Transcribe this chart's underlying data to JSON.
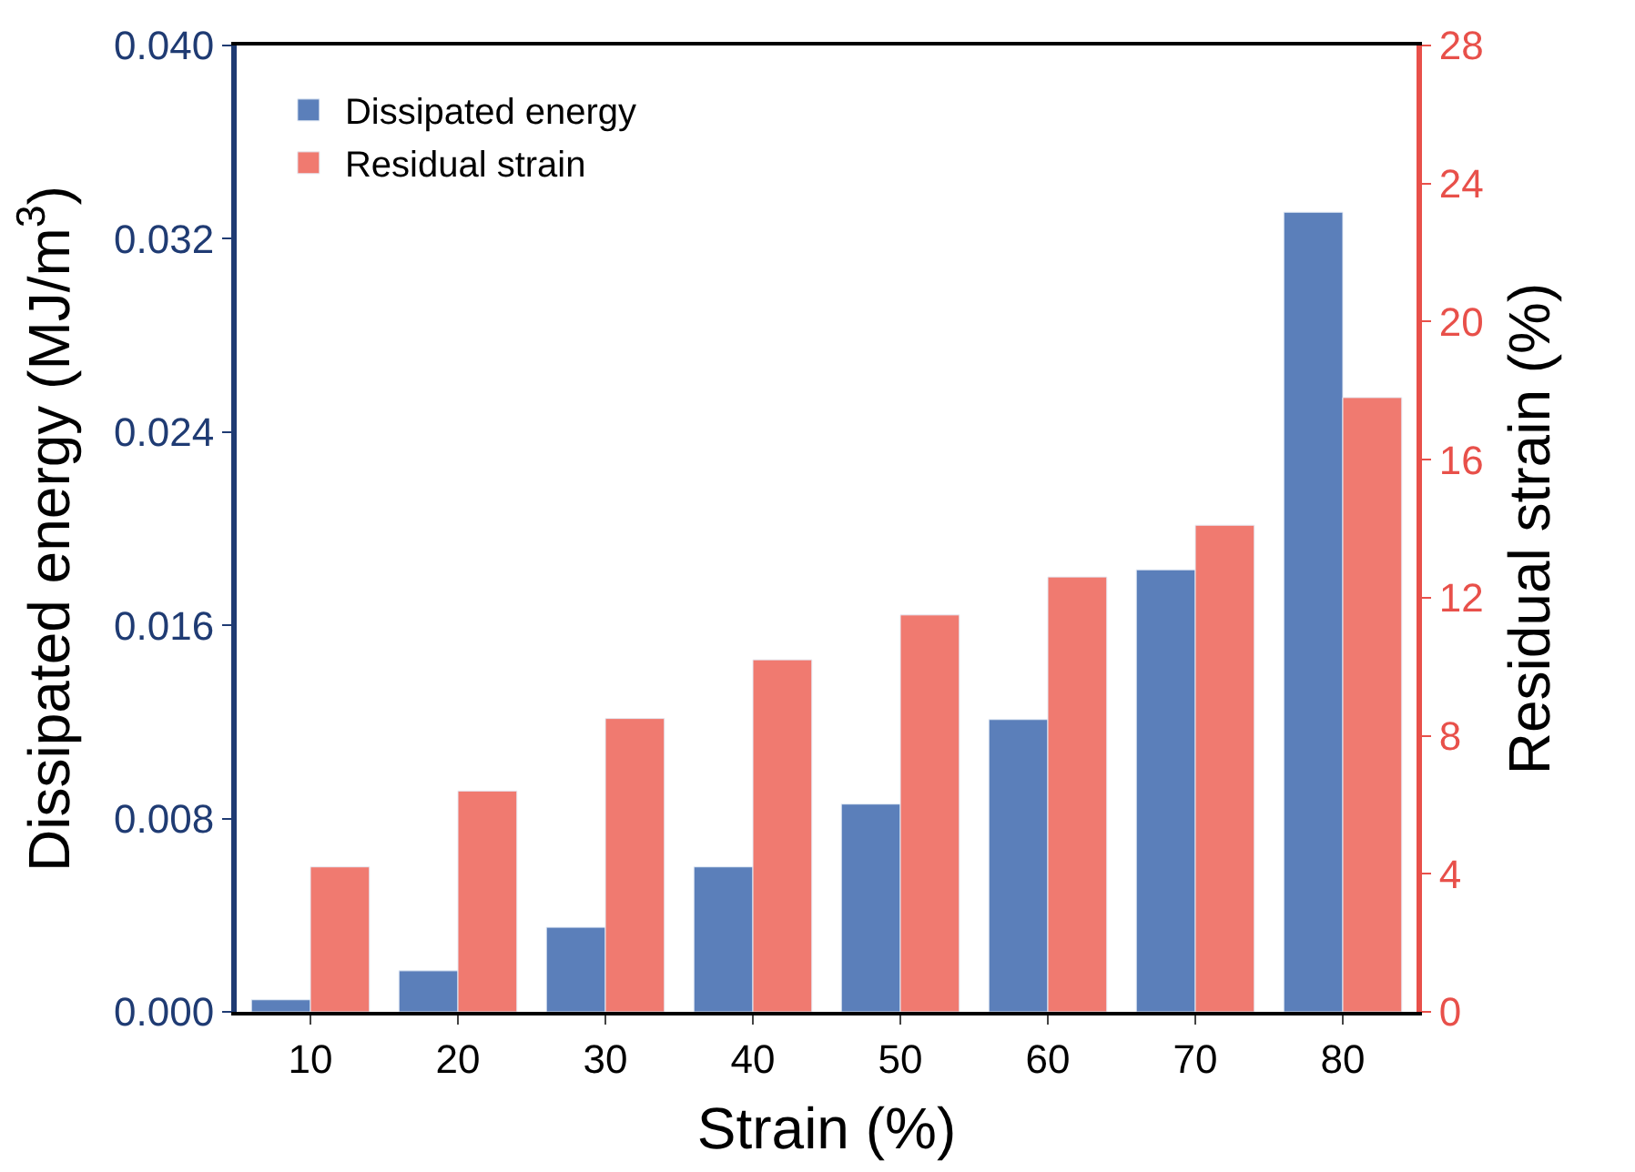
{
  "chart_data": {
    "type": "bar",
    "xlabel": "Strain (%)",
    "ylabel": "Dissipated energy (MJ/m$^{3}$)",
    "y2label": "Residual strain (%)",
    "categories": [
      "10",
      "20",
      "30",
      "40",
      "50",
      "60",
      "70",
      "80"
    ],
    "series": [
      {
        "name": "Dissipated energy",
        "color": "#5b7fba",
        "values": [
          0.0005,
          0.0017,
          0.0035,
          0.006,
          0.0086,
          0.0121,
          0.0183,
          0.0331
        ]
      },
      {
        "name": "Residual strain",
        "color": "#f07a70",
        "axis": "y2",
        "values": [
          4.2,
          6.4,
          8.5,
          10.2,
          11.5,
          12.6,
          14.1,
          17.8
        ]
      }
    ],
    "ylim": [
      0,
      0.04
    ],
    "yticks": [
      {
        "value": 0,
        "label": "0.000"
      },
      {
        "value": 0.008,
        "label": "0.008"
      },
      {
        "value": 0.016,
        "label": "0.016"
      },
      {
        "value": 0.024,
        "label": "0.024"
      },
      {
        "value": 0.032,
        "label": "0.032"
      },
      {
        "value": 0.04,
        "label": "0.040"
      }
    ],
    "y2lim": [
      0,
      28
    ],
    "y2ticks": [
      0,
      4,
      8,
      12,
      16,
      20,
      24,
      28
    ],
    "legend": "top left"
  }
}
